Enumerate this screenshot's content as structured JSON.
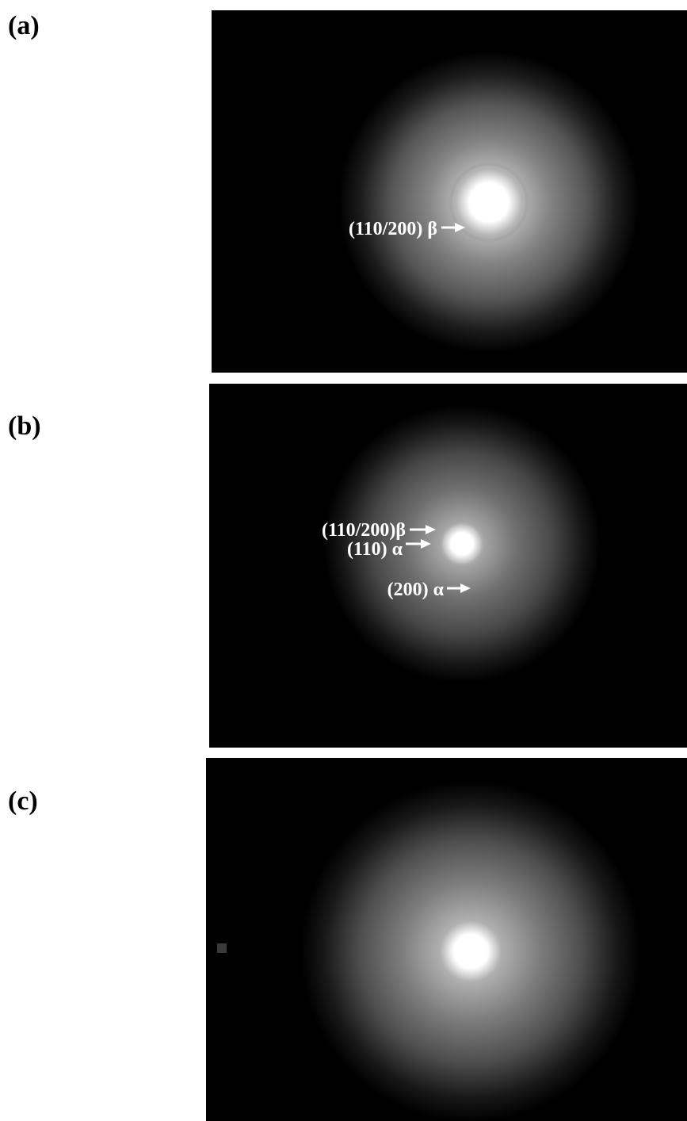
{
  "panels": [
    {
      "label": "(a)",
      "annotations": [
        "(110/200) β"
      ]
    },
    {
      "label": "(b)",
      "annotations": [
        "(110/200)β",
        "(110) α",
        "(200) α"
      ]
    },
    {
      "label": "(c)"
    }
  ]
}
